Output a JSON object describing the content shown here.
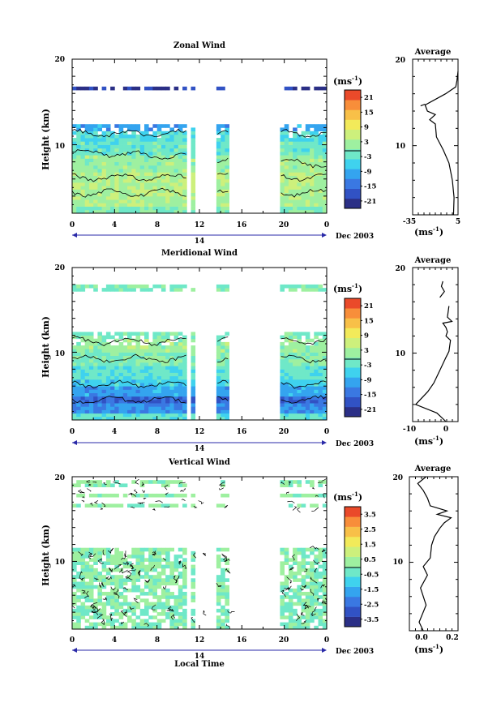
{
  "figure": {
    "xlabel": "Local Time",
    "date_label": "Dec 2003",
    "day_label": "14"
  },
  "colormap": [
    "#2b2f86",
    "#3152c4",
    "#3a78e2",
    "#34a4ef",
    "#3fd2ee",
    "#6fe8c8",
    "#9ef0a0",
    "#cdf07c",
    "#f2ea5a",
    "#f8c048",
    "#f88e3a",
    "#ea4a2a"
  ],
  "chart_data": [
    {
      "type": "heatmap",
      "title": "Zonal Wind",
      "ylabel": "Height (km)",
      "ylim": [
        2,
        20
      ],
      "yticks": [
        "20",
        "10"
      ],
      "xticks": [
        "0",
        "4",
        "8",
        "12",
        "16",
        "20",
        "0"
      ],
      "xlim_hours": [
        0,
        24
      ],
      "unit_label": "(ms",
      "unit_exp": "-1",
      "colorbar_ticks": [
        "21",
        "15",
        "9",
        "3",
        "-3",
        "-9",
        "-15",
        "-21"
      ],
      "vmin": -24,
      "vmax": 24,
      "data_windows_hours": [
        [
          0,
          10.8
        ],
        [
          11.3,
          11.6
        ],
        [
          12.3,
          12.6
        ],
        [
          13.7,
          14.9
        ],
        [
          19.7,
          24
        ]
      ],
      "height_bands": [
        {
          "from": 2,
          "to": 3,
          "value": 0
        },
        {
          "from": 3,
          "to": 5,
          "value": 3
        },
        {
          "from": 5,
          "to": 7,
          "value": 4
        },
        {
          "from": 7,
          "to": 9,
          "value": 2
        },
        {
          "from": 9,
          "to": 10.5,
          "value": -2
        },
        {
          "from": 10.5,
          "to": 11.5,
          "value": -5
        },
        {
          "from": 11.5,
          "to": 12.3,
          "value": -10
        },
        {
          "from": 16.3,
          "to": 16.8,
          "value": -20
        }
      ],
      "average": {
        "title": "Average",
        "xlim": [
          -35,
          5
        ],
        "xticks": [
          "-35",
          "5"
        ],
        "xlabel": "(ms",
        "yticks": [
          "20",
          "10"
        ],
        "profile": [
          [
            1,
            2
          ],
          [
            1.5,
            4
          ],
          [
            0,
            6
          ],
          [
            -3,
            8
          ],
          [
            -8,
            9.5
          ],
          [
            -14,
            11
          ],
          [
            -15,
            12.5
          ],
          [
            -20,
            13
          ],
          [
            -15,
            13.6
          ],
          [
            -22,
            14
          ],
          [
            -24,
            14.7
          ],
          [
            -6,
            16
          ],
          [
            3,
            16.8
          ],
          [
            4,
            17.5
          ],
          [
            5,
            18.6
          ]
        ],
        "segment2": [
          [
            -28,
            14.6
          ],
          [
            -24,
            14.8
          ]
        ]
      }
    },
    {
      "type": "heatmap",
      "title": "Meridional Wind",
      "ylabel": "Height (km)",
      "ylim": [
        2,
        20
      ],
      "yticks": [
        "20",
        "10"
      ],
      "xticks": [
        "0",
        "4",
        "8",
        "12",
        "16",
        "20",
        "0"
      ],
      "xlim_hours": [
        0,
        24
      ],
      "unit_label": "(ms",
      "unit_exp": "-1",
      "colorbar_ticks": [
        "21",
        "15",
        "9",
        "3",
        "-3",
        "-9",
        "-15",
        "-21"
      ],
      "vmin": -24,
      "vmax": 24,
      "data_windows_hours": [
        [
          0,
          10.8
        ],
        [
          11.3,
          11.6
        ],
        [
          12.3,
          12.6
        ],
        [
          13.7,
          14.9
        ],
        [
          19.7,
          24
        ]
      ],
      "height_bands": [
        {
          "from": 2,
          "to": 3,
          "value": -3
        },
        {
          "from": 3,
          "to": 4,
          "value": -12
        },
        {
          "from": 4,
          "to": 5,
          "value": -16
        },
        {
          "from": 5,
          "to": 6,
          "value": -10
        },
        {
          "from": 6,
          "to": 7,
          "value": -6
        },
        {
          "from": 7,
          "to": 8.5,
          "value": -3
        },
        {
          "from": 8.5,
          "to": 10,
          "value": 0
        },
        {
          "from": 10,
          "to": 11.5,
          "value": 2
        },
        {
          "from": 11.5,
          "to": 12.3,
          "value": -1
        },
        {
          "from": 17.4,
          "to": 17.9,
          "value": -1
        }
      ],
      "average": {
        "title": "Average",
        "xlim": [
          -11,
          4
        ],
        "xticks": [
          "-10",
          "0"
        ],
        "xlabel": "(ms",
        "yticks": [
          "20",
          "10"
        ],
        "profile": [
          [
            0,
            2
          ],
          [
            -3,
            3
          ],
          [
            -10,
            4
          ],
          [
            -6,
            5.5
          ],
          [
            -4,
            6.5
          ],
          [
            -2,
            8
          ],
          [
            0,
            9.5
          ],
          [
            1,
            10.2
          ],
          [
            1.5,
            11.5
          ],
          [
            0,
            12
          ],
          [
            0.5,
            12.5
          ],
          [
            0,
            13
          ],
          [
            -1,
            13.5
          ],
          [
            2,
            13.7
          ],
          [
            0.5,
            14.2
          ],
          [
            1,
            15.5
          ]
        ],
        "segment2": [
          [
            -2,
            16.5
          ],
          [
            -0.5,
            17.2
          ],
          [
            -1.5,
            17.8
          ],
          [
            -1,
            18.4
          ]
        ]
      }
    },
    {
      "type": "heatmap",
      "title": "Vertical Wind",
      "ylabel": "Height (km)",
      "ylim": [
        2,
        20
      ],
      "yticks": [
        "20",
        "10"
      ],
      "xticks": [
        "0",
        "4",
        "8",
        "12",
        "16",
        "20",
        "0"
      ],
      "xlim_hours": [
        0,
        24
      ],
      "unit_label": "(ms",
      "unit_exp": "-1",
      "colorbar_ticks": [
        "3.5",
        "2.5",
        "1.5",
        "0.5",
        "-0.5",
        "-1.5",
        "-2.5",
        "-3.5"
      ],
      "vmin": -4,
      "vmax": 4,
      "data_windows_hours": [
        [
          0,
          10.8
        ],
        [
          11.3,
          11.6
        ],
        [
          12.3,
          12.6
        ],
        [
          13.7,
          14.9
        ],
        [
          19.7,
          24
        ]
      ],
      "height_bands": [
        {
          "from": 2,
          "to": 5,
          "value": -0.1
        },
        {
          "from": 5,
          "to": 8,
          "value": 0.1
        },
        {
          "from": 8,
          "to": 11.5,
          "value": 0.05
        },
        {
          "from": 16.3,
          "to": 17,
          "value": 0.2
        },
        {
          "from": 17.5,
          "to": 18.2,
          "value": 0.1
        },
        {
          "from": 18.8,
          "to": 19.5,
          "value": 0.15
        }
      ],
      "average": {
        "title": "Average",
        "xlim": [
          -0.1,
          0.25
        ],
        "xticks": [
          "0.0",
          "0.2"
        ],
        "xlabel": "(ms",
        "yticks": [
          "20",
          "10"
        ],
        "profile": [
          [
            0,
            2
          ],
          [
            -0.03,
            3
          ],
          [
            0.02,
            5
          ],
          [
            -0.02,
            7
          ],
          [
            0.03,
            8.5
          ],
          [
            0.0,
            9.5
          ],
          [
            0.05,
            10.5
          ],
          [
            0.06,
            12
          ],
          [
            0.08,
            13
          ],
          [
            0.12,
            14
          ],
          [
            0.15,
            14.6
          ],
          [
            0.2,
            15.2
          ],
          [
            0.1,
            15.6
          ],
          [
            0.17,
            16
          ],
          [
            0.05,
            16.6
          ],
          [
            0.03,
            17.5
          ],
          [
            0.0,
            18.4
          ],
          [
            -0.04,
            19.2
          ],
          [
            0.02,
            20
          ]
        ]
      }
    }
  ]
}
